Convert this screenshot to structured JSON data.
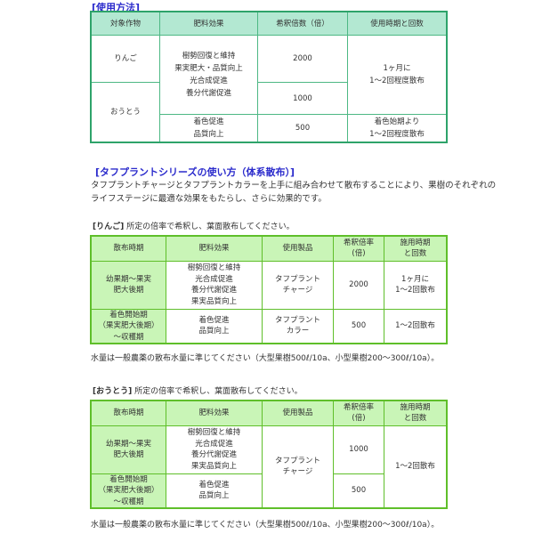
{
  "usage": {
    "title": "[使用方法]",
    "headers": [
      "対象作物",
      "肥料効果",
      "希釈倍数（倍）",
      "使用時期と回数"
    ],
    "crop1": "りんご",
    "crop2": "おうとう",
    "effect1": [
      "樹勢回復と維持",
      "果実肥大・品質向上",
      "光合成促進",
      "養分代謝促進"
    ],
    "dil1": "2000",
    "dil2": "1000",
    "timing1": [
      "1ヶ月に",
      "1〜2回程度散布"
    ],
    "effect2": [
      "着色促進",
      "品質向上"
    ],
    "dil3": "500",
    "timing2": [
      "着色始期より",
      "1〜2回程度散布"
    ]
  },
  "series": {
    "title": "[タフプラントシリーズの使い方（体系散布）]",
    "desc": [
      "タフプラントチャージとタフプラントカラーを上手に組み合わせて散布することにより、果樹のそれぞれの",
      "ライフステージに最適な効果をもたらし、さらに効果的です。"
    ]
  },
  "apple": {
    "label": "[りんご]",
    "instr": "所定の倍率で希釈し、葉面散布してください。",
    "headers": [
      "散布時期",
      "肥料効果",
      "使用製品",
      [
        "希釈倍率",
        "(倍)"
      ],
      [
        "施用時期",
        "と回数"
      ]
    ],
    "rows": [
      {
        "period": [
          "幼果期〜果実",
          "肥大後期"
        ],
        "effect": [
          "樹勢回復と維持",
          "光合成促進",
          "養分代謝促進",
          "果実品質向上"
        ],
        "product": [
          "タフプラント",
          "チャージ"
        ],
        "dil": "2000",
        "timing": [
          "1ヶ月に",
          "1〜2回散布"
        ]
      },
      {
        "period": [
          "着色開始期",
          "（果実肥大後期）",
          "〜収穫期"
        ],
        "effect": [
          "着色促進",
          "品質向上"
        ],
        "product": [
          "タフプラント",
          "カラー"
        ],
        "dil": "500",
        "timing": [
          "1〜2回散布"
        ]
      }
    ],
    "note": "水量は一般農薬の散布水量に準じてください（大型果樹500ℓ/10a、小型果樹200〜300ℓ/10a）。"
  },
  "cherry": {
    "label": "[おうとう]",
    "instr": "所定の倍率で希釈し、葉面散布してください。",
    "headers": [
      "散布時期",
      "肥料効果",
      "使用製品",
      [
        "希釈倍率",
        "(倍)"
      ],
      [
        "施用時期",
        "と回数"
      ]
    ],
    "period1": [
      "幼果期〜果実",
      "肥大後期"
    ],
    "effect1": [
      "樹勢回復と維持",
      "光合成促進",
      "養分代謝促進",
      "果実品質向上"
    ],
    "product": [
      "タフプラント",
      "チャージ"
    ],
    "dil1": "1000",
    "timing": "1〜2回散布",
    "period2": [
      "着色開始期",
      "（果実肥大後期）",
      "〜収穫期"
    ],
    "effect2": [
      "着色促進",
      "品質向上"
    ],
    "dil2": "500",
    "note": "水量は一般農薬の散布水量に準じてください（大型果樹500ℓ/10a、小型果樹200〜300ℓ/10a）。"
  }
}
